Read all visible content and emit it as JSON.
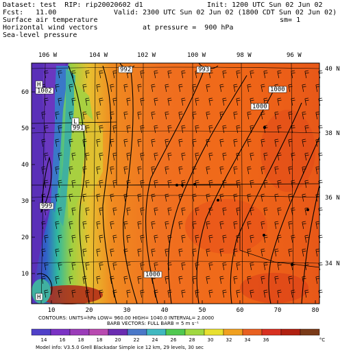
{
  "header": {
    "dataset": "Dataset: test  RIP: rip20020602 d1",
    "init": "Init: 1200 UTC Sun 02 Jun 02",
    "fcst": "Fcst:   11.00",
    "valid": "Valid: 2300 UTC Sun 02 Jun 02 (1800 CDT Sun 02 Jun 02)",
    "field1": "Surface air temperature",
    "sm": "sm= 1",
    "field2": "Horizontal wind vectors",
    "pressure": "at pressure =  900 hPa",
    "field3": "Sea-level pressure"
  },
  "map": {
    "lon_labels": [
      "106 W",
      "104 W",
      "102 W",
      "100 W",
      "98 W",
      "96 W"
    ],
    "lat_labels": [
      "40 N",
      "38 N",
      "36 N",
      "34 N"
    ],
    "x_ticks": [
      "10",
      "20",
      "30",
      "40",
      "50",
      "60",
      "70",
      "80"
    ],
    "y_ticks": [
      "10",
      "20",
      "30",
      "40",
      "50",
      "60"
    ],
    "pressure_labels": [
      "992",
      "993",
      "1000",
      "1000",
      "1002",
      "991",
      "999",
      "1000"
    ],
    "center_labels": [
      "H",
      "L",
      "H"
    ]
  },
  "footer": {
    "contours": "CONTOURS:  UNITS=hPa  LOW=   960.00       HIGH=  1040.0      INTERVAL=   2.0000",
    "barbs": "BARB VECTORS:  FULL BARB = 5 m s⁻¹",
    "colorbar_labels": [
      "14",
      "16",
      "18",
      "18",
      "20",
      "22",
      "24",
      "26",
      "28",
      "30",
      "32",
      "34",
      "36"
    ],
    "colorbar_unit": "°C",
    "colorbar_colors": [
      "#5040c8",
      "#7a32c4",
      "#9a3cb8",
      "#b84ab0",
      "#6a2cb0",
      "#4a78c8",
      "#40b8c0",
      "#50c850",
      "#a0d840",
      "#e8e030",
      "#f0a020",
      "#e86020",
      "#d83020",
      "#b02010",
      "#7a3a18"
    ],
    "model_info": "Model info: V3.5.0  Grell    Blackadar  Simple ice    12 km,  29 levels,   30 sec"
  }
}
